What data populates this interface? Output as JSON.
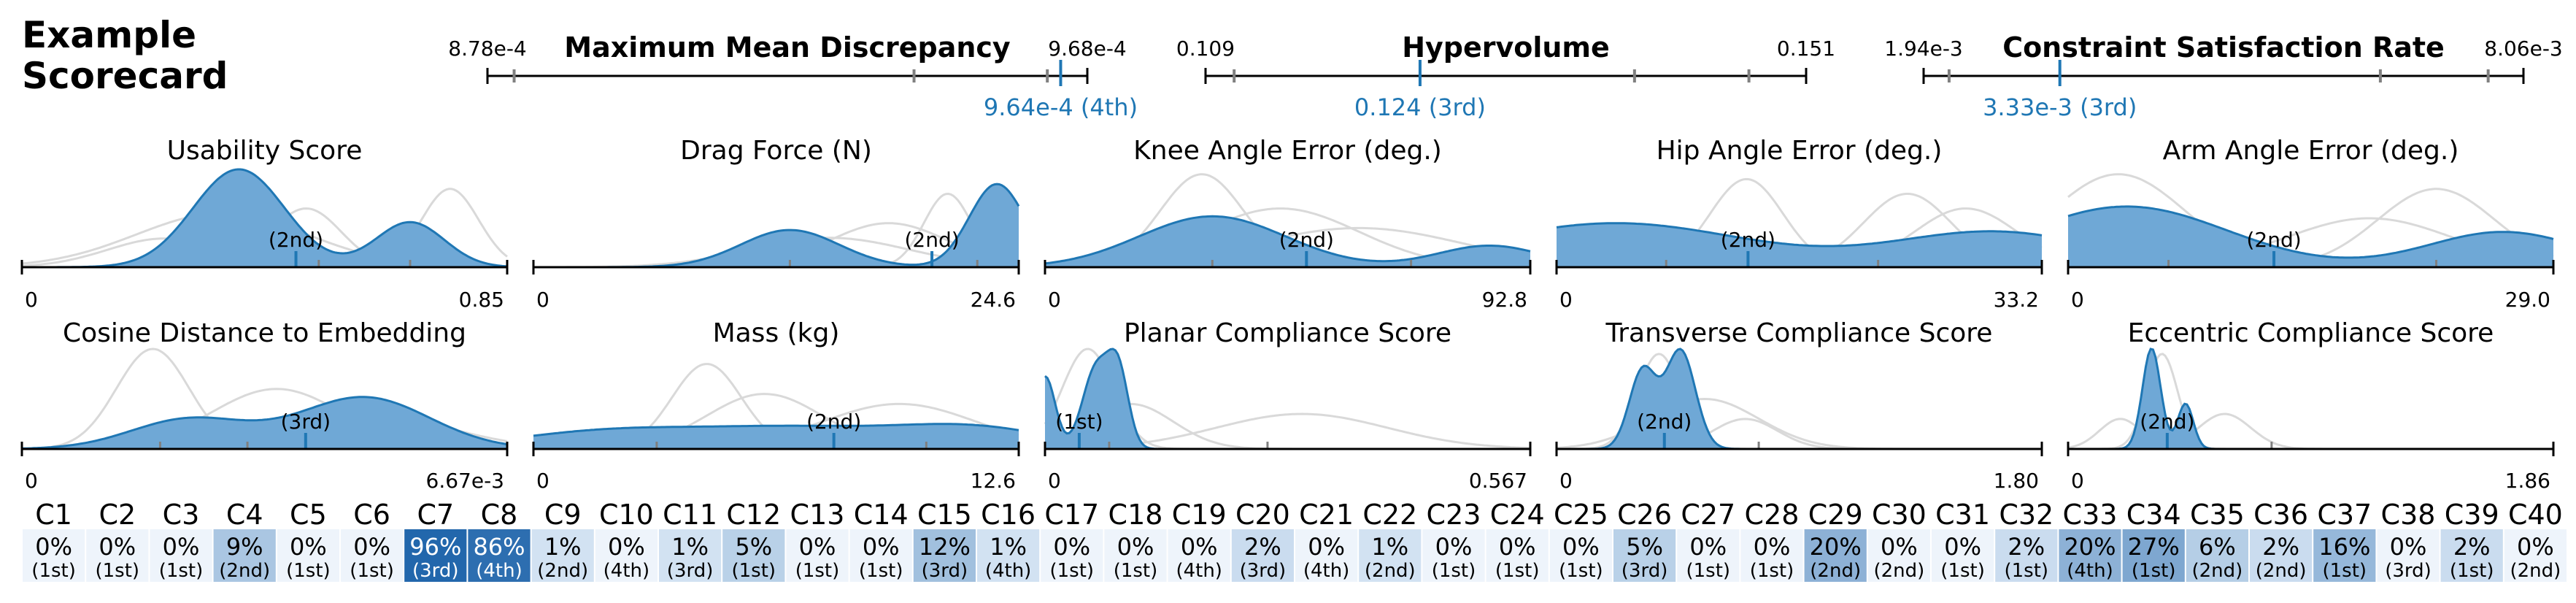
{
  "title": "Example\nScorecard",
  "colors": {
    "accent": "#1f77b4",
    "fill": "#6fa8d6",
    "ghost": "#d9d9d9",
    "tick": "#808080"
  },
  "chart_data": [
    {
      "type": "range-indicator",
      "title": "Maximum Mean Discrepancy",
      "min": 0.000878,
      "max": 0.000968,
      "min_label": "8.78e-4",
      "max_label": "9.68e-4",
      "ticks": [
        0.000882,
        0.000942,
        0.000962
      ],
      "value": 0.000964,
      "value_label": "9.64e-4 (4th)"
    },
    {
      "type": "range-indicator",
      "title": "Hypervolume",
      "min": 0.109,
      "max": 0.151,
      "min_label": "0.109",
      "max_label": "0.151",
      "ticks": [
        0.111,
        0.139,
        0.147
      ],
      "value": 0.124,
      "value_label": "0.124 (3rd)"
    },
    {
      "type": "range-indicator",
      "title": "Constraint Satisfaction Rate",
      "min": 0.00194,
      "max": 0.00806,
      "min_label": "1.94e-3",
      "max_label": "8.06e-3",
      "ticks": [
        0.0022,
        0.0066,
        0.0077
      ],
      "value": 0.00333,
      "value_label": "3.33e-3 (3rd)"
    },
    {
      "type": "area",
      "title": "Usability Score",
      "xmin": 0,
      "xmax": 0.85,
      "xmin_label": "0",
      "xmax_label": "0.85",
      "value": 0.48,
      "rank": "(2nd)",
      "peaks": [
        [
          0.38,
          1.0,
          0.08
        ],
        [
          0.68,
          0.46,
          0.06
        ]
      ],
      "ghosts": [
        [
          [
            0.35,
            0.55,
            0.15
          ]
        ],
        [
          [
            0.5,
            0.6,
            0.06
          ],
          [
            0.25,
            0.3,
            0.1
          ]
        ],
        [
          [
            0.75,
            0.8,
            0.05
          ]
        ]
      ],
      "ticks": [
        0.52,
        0.68
      ]
    },
    {
      "type": "area",
      "title": "Drag Force (N)",
      "xmin": 0,
      "xmax": 24.6,
      "xmin_label": "0",
      "xmax_label": "24.6",
      "value": 20.2,
      "rank": "(2nd)",
      "peaks": [
        [
          13.0,
          0.38,
          2.5
        ],
        [
          23.5,
          0.85,
          1.4
        ]
      ],
      "ghosts": [
        [
          [
            18.0,
            0.45,
            3.0
          ]
        ],
        [
          [
            21.0,
            0.75,
            1.2
          ]
        ],
        [
          [
            15.0,
            0.3,
            4.0
          ]
        ]
      ],
      "ticks": [
        13.0,
        20.2,
        22.5
      ]
    },
    {
      "type": "area",
      "title": "Knee Angle Error (deg.)",
      "xmin": 0,
      "xmax": 92.8,
      "xmin_label": "0",
      "xmax_label": "92.8",
      "value": 50.0,
      "rank": "(2nd)",
      "peaks": [
        [
          32.0,
          0.52,
          14.0
        ],
        [
          85.0,
          0.22,
          10.0
        ]
      ],
      "ghosts": [
        [
          [
            30.0,
            0.95,
            8.0
          ]
        ],
        [
          [
            45.0,
            0.6,
            15.0
          ]
        ],
        [
          [
            60.0,
            0.4,
            20.0
          ]
        ]
      ],
      "ticks": [
        32.0,
        50.0,
        70.0
      ]
    },
    {
      "type": "area",
      "title": "Hip Angle Error (deg.)",
      "xmin": 0,
      "xmax": 33.2,
      "xmin_label": "0",
      "xmax_label": "33.2",
      "value": 13.1,
      "rank": "(2nd)",
      "peaks": [
        [
          4.0,
          0.45,
          9.0
        ],
        [
          30.0,
          0.36,
          7.0
        ]
      ],
      "ghosts": [
        [
          [
            13.0,
            0.9,
            2.5
          ]
        ],
        [
          [
            24.0,
            0.75,
            3.0
          ]
        ],
        [
          [
            28.0,
            0.6,
            3.5
          ]
        ]
      ],
      "ticks": [
        7.5,
        13.1,
        22.0
      ]
    },
    {
      "type": "area",
      "title": "Arm Angle Error (deg.)",
      "xmin": 0,
      "xmax": 29.0,
      "xmin_label": "0",
      "xmax_label": "29.0",
      "value": 12.3,
      "rank": "(2nd)",
      "peaks": [
        [
          3.5,
          0.62,
          6.0
        ],
        [
          26.0,
          0.36,
          4.5
        ]
      ],
      "ghosts": [
        [
          [
            3.0,
            0.95,
            4.0
          ]
        ],
        [
          [
            22.0,
            0.8,
            3.5
          ]
        ],
        [
          [
            18.0,
            0.5,
            5.0
          ]
        ]
      ],
      "ticks": [
        6.0,
        12.3,
        22.0
      ]
    },
    {
      "type": "area",
      "title": "Cosine Distance to Embedding",
      "xmin": 0,
      "xmax": 0.00667,
      "xmin_label": "0",
      "xmax_label": "6.67e-3",
      "value": 0.0039,
      "rank": "(3rd)",
      "peaks": [
        [
          0.0023,
          0.3,
          0.0008
        ],
        [
          0.0047,
          0.52,
          0.0009
        ]
      ],
      "ghosts": [
        [
          [
            0.0018,
            1.0,
            0.0005
          ]
        ],
        [
          [
            0.0035,
            0.6,
            0.0009
          ]
        ],
        [
          [
            0.0045,
            0.4,
            0.0012
          ]
        ]
      ],
      "ticks": [
        0.0019,
        0.0031,
        0.0039
      ]
    },
    {
      "type": "area",
      "title": "Mass (kg)",
      "xmin": 0,
      "xmax": 12.6,
      "xmin_label": "0",
      "xmax_label": "12.6",
      "value": 7.8,
      "rank": "(2nd)",
      "peaks": [
        [
          2.0,
          0.22,
          2.5
        ],
        [
          7.0,
          0.24,
          2.5
        ],
        [
          11.5,
          0.25,
          2.0
        ]
      ],
      "ghosts": [
        [
          [
            4.5,
            0.85,
            0.9
          ]
        ],
        [
          [
            6.0,
            0.55,
            1.5
          ]
        ],
        [
          [
            9.5,
            0.45,
            2.0
          ]
        ]
      ],
      "ticks": [
        3.2,
        7.8,
        10.2
      ]
    },
    {
      "type": "area",
      "title": "Planar Compliance Score",
      "xmin": 0,
      "xmax": 0.567,
      "xmin_label": "0",
      "xmax_label": "0.567",
      "value": 0.04,
      "rank": "(1st)",
      "peaks": [
        [
          0.0,
          0.9,
          0.012
        ],
        [
          0.06,
          1.0,
          0.016
        ],
        [
          0.086,
          0.88,
          0.012
        ]
      ],
      "ghosts": [
        [
          [
            0.05,
            1.0,
            0.03
          ]
        ],
        [
          [
            0.1,
            0.45,
            0.05
          ]
        ],
        [
          [
            0.3,
            0.35,
            0.1
          ]
        ]
      ],
      "ticks": [
        0.04,
        0.075,
        0.26
      ]
    },
    {
      "type": "area",
      "title": "Transverse Compliance Score",
      "xmin": 0,
      "xmax": 1.8,
      "xmin_label": "0",
      "xmax_label": "1.80",
      "value": 0.4,
      "rank": "(2nd)",
      "peaks": [
        [
          0.32,
          0.8,
          0.05
        ],
        [
          0.46,
          1.0,
          0.055
        ]
      ],
      "ghosts": [
        [
          [
            0.38,
            0.95,
            0.08
          ]
        ],
        [
          [
            0.7,
            0.3,
            0.12
          ]
        ],
        [
          [
            0.55,
            0.5,
            0.2
          ]
        ]
      ],
      "ticks": [
        0.4,
        0.75
      ]
    },
    {
      "type": "area",
      "title": "Eccentric Compliance Score",
      "xmin": 0,
      "xmax": 1.86,
      "xmin_label": "0",
      "xmax_label": "1.86",
      "value": 0.38,
      "rank": "(2nd)",
      "peaks": [
        [
          0.32,
          1.0,
          0.035
        ],
        [
          0.45,
          0.45,
          0.03
        ]
      ],
      "ghosts": [
        [
          [
            0.36,
            0.95,
            0.06
          ]
        ],
        [
          [
            0.6,
            0.35,
            0.1
          ]
        ],
        [
          [
            0.2,
            0.3,
            0.08
          ]
        ]
      ],
      "ticks": [
        0.38,
        0.78
      ]
    },
    {
      "type": "heatmap",
      "labels": [
        "C1",
        "C2",
        "C3",
        "C4",
        "C5",
        "C6",
        "C7",
        "C8",
        "C9",
        "C10",
        "C11",
        "C12",
        "C13",
        "C14",
        "C15",
        "C16",
        "C17",
        "C18",
        "C19",
        "C20",
        "C21",
        "C22",
        "C23",
        "C24",
        "C25",
        "C26",
        "C27",
        "C28",
        "C29",
        "C30",
        "C31",
        "C32",
        "C33",
        "C34",
        "C35",
        "C36",
        "C37",
        "C38",
        "C39",
        "C40"
      ],
      "values": [
        "0%",
        "0%",
        "0%",
        "9%",
        "0%",
        "0%",
        "96%",
        "86%",
        "1%",
        "0%",
        "1%",
        "5%",
        "0%",
        "0%",
        "12%",
        "1%",
        "0%",
        "0%",
        "0%",
        "2%",
        "0%",
        "1%",
        "0%",
        "0%",
        "0%",
        "5%",
        "0%",
        "0%",
        "20%",
        "0%",
        "0%",
        "2%",
        "20%",
        "27%",
        "6%",
        "2%",
        "16%",
        "0%",
        "2%",
        "0%"
      ],
      "percent": [
        0,
        0,
        0,
        9,
        0,
        0,
        96,
        86,
        1,
        0,
        1,
        5,
        0,
        0,
        12,
        1,
        0,
        0,
        0,
        2,
        0,
        1,
        0,
        0,
        0,
        5,
        0,
        0,
        20,
        0,
        0,
        2,
        20,
        27,
        6,
        2,
        16,
        0,
        2,
        0
      ],
      "ranks": [
        "(1st)",
        "(1st)",
        "(1st)",
        "(2nd)",
        "(1st)",
        "(1st)",
        "(3rd)",
        "(4th)",
        "(2nd)",
        "(4th)",
        "(3rd)",
        "(1st)",
        "(1st)",
        "(1st)",
        "(3rd)",
        "(4th)",
        "(1st)",
        "(1st)",
        "(4th)",
        "(3rd)",
        "(4th)",
        "(2nd)",
        "(1st)",
        "(1st)",
        "(1st)",
        "(3rd)",
        "(1st)",
        "(1st)",
        "(2nd)",
        "(2nd)",
        "(1st)",
        "(1st)",
        "(4th)",
        "(1st)",
        "(2nd)",
        "(2nd)",
        "(1st)",
        "(3rd)",
        "(1st)",
        "(2nd)"
      ]
    }
  ]
}
